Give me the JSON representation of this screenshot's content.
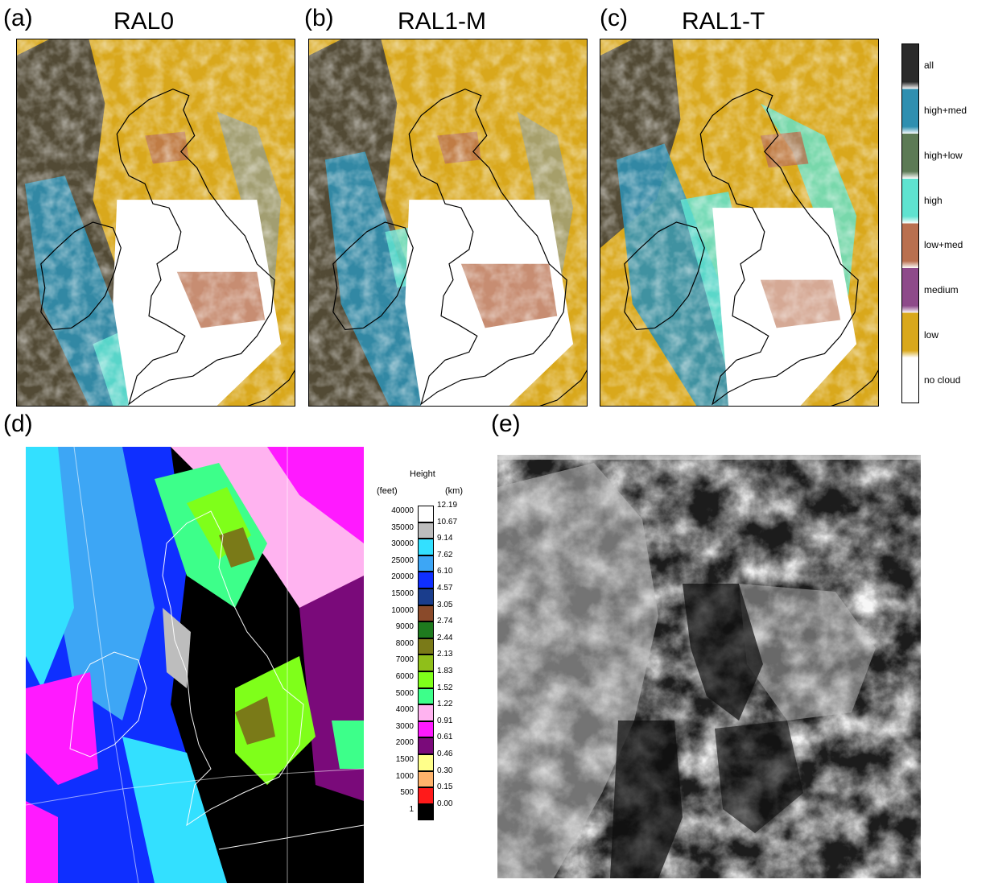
{
  "panels": {
    "a": {
      "letter": "(a)",
      "title": "RAL0"
    },
    "b": {
      "letter": "(b)",
      "title": "RAL1-M"
    },
    "c": {
      "letter": "(c)",
      "title": "RAL1-T"
    },
    "d": {
      "letter": "(d)"
    },
    "e": {
      "letter": "(e)"
    }
  },
  "cloud_legend": {
    "items": [
      {
        "label": "all",
        "color": "#2a2a2a"
      },
      {
        "label": "high+med",
        "color": "#2f8fb0"
      },
      {
        "label": "high+low",
        "color": "#5c7a55"
      },
      {
        "label": "high",
        "color": "#5fe3d0"
      },
      {
        "label": "low+med",
        "color": "#b9704f"
      },
      {
        "label": "medium",
        "color": "#8e4a8a"
      },
      {
        "label": "low",
        "color": "#d9a81c"
      },
      {
        "label": "no cloud",
        "color": "#ffffff"
      }
    ]
  },
  "height_legend": {
    "title": "Height",
    "unit_left": "(feet)",
    "unit_right": "(km)",
    "rows": [
      {
        "feet": "40000",
        "km": "12.19",
        "color": "#ffffff"
      },
      {
        "feet": "35000",
        "km": "10.67",
        "color": "#bdbdbd"
      },
      {
        "feet": "30000",
        "km": "9.14",
        "color": "#33e0ff"
      },
      {
        "feet": "25000",
        "km": "7.62",
        "color": "#3da6f5"
      },
      {
        "feet": "20000",
        "km": "6.10",
        "color": "#0f2fff"
      },
      {
        "feet": "15000",
        "km": "4.57",
        "color": "#1a3d8c"
      },
      {
        "feet": "10000",
        "km": "3.05",
        "color": "#8a4a2a"
      },
      {
        "feet": "9000",
        "km": "2.74",
        "color": "#1e7a1e"
      },
      {
        "feet": "8000",
        "km": "2.44",
        "color": "#7a7a18"
      },
      {
        "feet": "7000",
        "km": "2.13",
        "color": "#8fbf1a"
      },
      {
        "feet": "6000",
        "km": "1.83",
        "color": "#7fff1a"
      },
      {
        "feet": "5000",
        "km": "1.52",
        "color": "#3dff8a"
      },
      {
        "feet": "4000",
        "km": "1.22",
        "color": "#ffb3f0"
      },
      {
        "feet": "3000",
        "km": "0.91",
        "color": "#ff1aff"
      },
      {
        "feet": "2000",
        "km": "0.61",
        "color": "#7a0a7a"
      },
      {
        "feet": "1500",
        "km": "0.46",
        "color": "#ffff8a"
      },
      {
        "feet": "1000",
        "km": "0.30",
        "color": "#ffb36b"
      },
      {
        "feet": "500",
        "km": "0.15",
        "color": "#ff1a1a"
      },
      {
        "feet": "1",
        "km": "0.00",
        "color": "#000000"
      }
    ]
  },
  "colors": {
    "low": "#d9a81c",
    "high": "#5fe3d0",
    "high_med": "#2f8fb0",
    "all": "#3a3a3a",
    "low_med": "#b9704f",
    "satellite_bg": "#1c1c1c"
  }
}
